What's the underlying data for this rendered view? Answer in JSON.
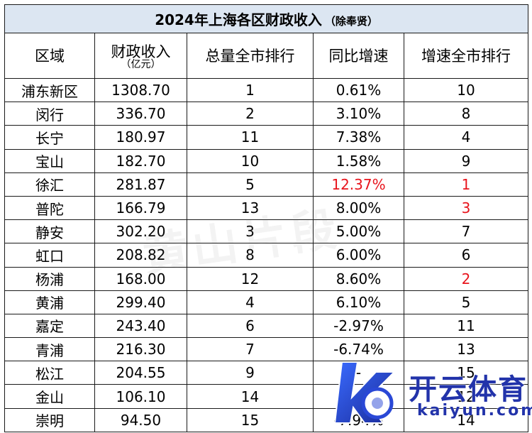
{
  "table": {
    "title": "2024年上海各区财政收入",
    "title_note": "（除奉贤）",
    "headers": {
      "district": "区域",
      "revenue": "财政收入",
      "revenue_unit": "（亿元）",
      "total_rank": "总量全市排行",
      "growth": "同比增速",
      "growth_rank": "增速全市排行"
    },
    "rows": [
      {
        "district": "浦东新区",
        "revenue": "1308.70",
        "total_rank": "1",
        "growth": "0.61%",
        "growth_rank": "10",
        "highlight_growth": false,
        "highlight_rank": false
      },
      {
        "district": "闵行",
        "revenue": "336.70",
        "total_rank": "2",
        "growth": "3.10%",
        "growth_rank": "8",
        "highlight_growth": false,
        "highlight_rank": false
      },
      {
        "district": "长宁",
        "revenue": "180.97",
        "total_rank": "11",
        "growth": "7.38%",
        "growth_rank": "4",
        "highlight_growth": false,
        "highlight_rank": false
      },
      {
        "district": "宝山",
        "revenue": "182.70",
        "total_rank": "10",
        "growth": "1.58%",
        "growth_rank": "9",
        "highlight_growth": false,
        "highlight_rank": false
      },
      {
        "district": "徐汇",
        "revenue": "281.87",
        "total_rank": "5",
        "growth": "12.37%",
        "growth_rank": "1",
        "highlight_growth": true,
        "highlight_rank": true
      },
      {
        "district": "普陀",
        "revenue": "166.79",
        "total_rank": "13",
        "growth": "8.00%",
        "growth_rank": "3",
        "highlight_growth": false,
        "highlight_rank": true
      },
      {
        "district": "静安",
        "revenue": "302.20",
        "total_rank": "3",
        "growth": "5.00%",
        "growth_rank": "7",
        "highlight_growth": false,
        "highlight_rank": false
      },
      {
        "district": "虹口",
        "revenue": "208.82",
        "total_rank": "8",
        "growth": "6.00%",
        "growth_rank": "6",
        "highlight_growth": false,
        "highlight_rank": false
      },
      {
        "district": "杨浦",
        "revenue": "168.00",
        "total_rank": "12",
        "growth": "8.60%",
        "growth_rank": "2",
        "highlight_growth": false,
        "highlight_rank": true
      },
      {
        "district": "黄浦",
        "revenue": "299.40",
        "total_rank": "4",
        "growth": "6.10%",
        "growth_rank": "5",
        "highlight_growth": false,
        "highlight_rank": false
      },
      {
        "district": "嘉定",
        "revenue": "243.40",
        "total_rank": "6",
        "growth": "-2.97%",
        "growth_rank": "11",
        "highlight_growth": false,
        "highlight_rank": false
      },
      {
        "district": "青浦",
        "revenue": "216.30",
        "total_rank": "7",
        "growth": "-6.74%",
        "growth_rank": "13",
        "highlight_growth": false,
        "highlight_rank": false
      },
      {
        "district": "松江",
        "revenue": "204.55",
        "total_rank": "9",
        "growth": "-",
        "growth_rank": "15",
        "highlight_growth": false,
        "highlight_rank": false
      },
      {
        "district": "金山",
        "revenue": "106.10",
        "total_rank": "14",
        "growth": "-",
        "growth_rank": "12",
        "highlight_growth": false,
        "highlight_rank": false
      },
      {
        "district": "崇明",
        "revenue": "94.50",
        "total_rank": "15",
        "growth": "-7.94%",
        "growth_rank": "14",
        "highlight_growth": false,
        "highlight_rank": false
      }
    ]
  },
  "watermark": {
    "text": "黄山片段"
  },
  "logo": {
    "cn": "开云体育",
    "en": "kaiyun.com",
    "icon": "kaiyun-k-logo-icon"
  },
  "colors": {
    "highlight": "#e8141c",
    "title_bg": "#dce6f2",
    "logo": "#2233aa"
  }
}
